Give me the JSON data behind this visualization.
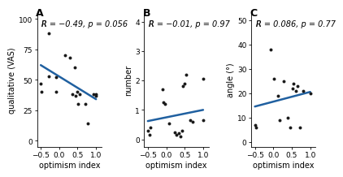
{
  "panel_A": {
    "label": "A",
    "xlabel": "optimism index",
    "ylabel": "qualitative (VAS)",
    "annot_parts": [
      "R",
      " = −0.49, ",
      "p",
      " = 0.056"
    ],
    "xlim": [
      -0.6,
      1.15
    ],
    "ylim": [
      -5,
      105
    ],
    "xticks": [
      -0.5,
      0.0,
      0.5,
      1.0
    ],
    "yticks": [
      0,
      25,
      50,
      75,
      100
    ],
    "scatter_x": [
      -0.5,
      -0.48,
      -0.28,
      -0.28,
      -0.08,
      -0.08,
      0.15,
      0.3,
      0.35,
      0.42,
      0.45,
      0.5,
      0.52,
      0.55,
      0.7,
      0.78,
      0.92,
      1.0,
      1.0
    ],
    "scatter_y": [
      47,
      40,
      88,
      53,
      52,
      40,
      70,
      68,
      38,
      60,
      37,
      40,
      30,
      38,
      30,
      14,
      38,
      37,
      38
    ],
    "line_x": [
      -0.5,
      1.0
    ],
    "line_y": [
      62,
      34
    ]
  },
  "panel_B": {
    "label": "B",
    "xlabel": "optimism index",
    "ylabel": "number",
    "annot_parts": [
      "R",
      " = −0.01, ",
      "p",
      " = 0.97"
    ],
    "xlim": [
      -0.6,
      1.15
    ],
    "ylim": [
      -0.25,
      4.3
    ],
    "xticks": [
      -0.5,
      0.0,
      0.5,
      1.0
    ],
    "yticks": [
      0,
      1,
      2,
      3,
      4
    ],
    "scatter_x": [
      -0.5,
      -0.45,
      -0.42,
      -0.1,
      -0.08,
      -0.03,
      0.08,
      0.22,
      0.27,
      0.35,
      0.38,
      0.42,
      0.45,
      0.5,
      0.55,
      0.65,
      0.72,
      1.0,
      1.0
    ],
    "scatter_y": [
      0.3,
      0.15,
      0.4,
      1.7,
      1.25,
      1.2,
      0.55,
      0.25,
      0.15,
      0.2,
      0.1,
      0.3,
      1.8,
      1.9,
      2.2,
      0.65,
      0.6,
      2.05,
      0.65
    ],
    "line_x": [
      -0.5,
      1.0
    ],
    "line_y": [
      0.62,
      1.0
    ]
  },
  "panel_C": {
    "label": "C",
    "xlabel": "optimism index",
    "ylabel": "angle (°)",
    "annot_parts": [
      "R",
      " = 0.086, ",
      "p",
      " = 0.77"
    ],
    "xlim": [
      -0.6,
      1.15
    ],
    "ylim": [
      -2,
      53
    ],
    "xticks": [
      -0.5,
      0.0,
      0.5,
      1.0
    ],
    "yticks": [
      0,
      10,
      20,
      30,
      40,
      50
    ],
    "scatter_x": [
      -0.5,
      -0.48,
      -0.08,
      0.02,
      0.12,
      0.18,
      0.28,
      0.38,
      0.45,
      0.52,
      0.55,
      0.62,
      0.65,
      0.72,
      0.82,
      1.0
    ],
    "scatter_y": [
      7,
      6,
      38,
      26,
      19,
      9,
      25,
      10,
      6,
      22,
      24,
      21,
      23,
      6,
      21,
      20
    ],
    "line_x": [
      -0.5,
      1.0
    ],
    "line_y": [
      14.5,
      20.5
    ]
  },
  "line_color": "#2060a0",
  "scatter_color": "#1a1a1a",
  "bg_color": "#ffffff",
  "scatter_size": 8,
  "line_width": 1.8,
  "tick_fontsize": 6.5,
  "label_fontsize": 7,
  "annot_fontsize": 7,
  "panel_label_fontsize": 9
}
